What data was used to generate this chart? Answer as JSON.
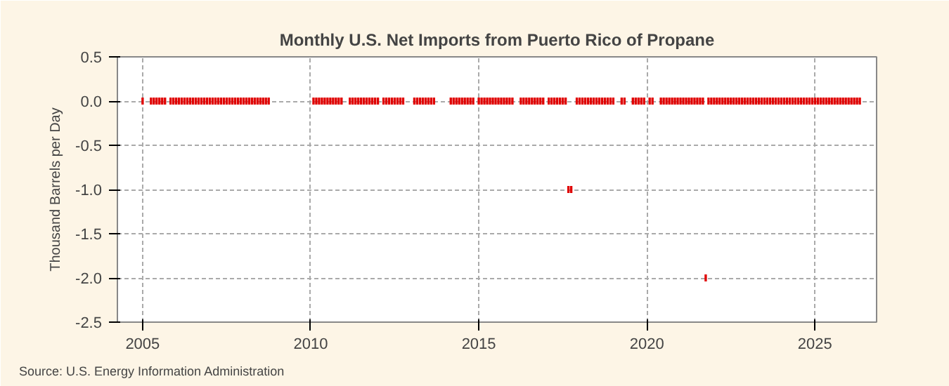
{
  "chart_data": {
    "type": "scatter",
    "title": "Monthly U.S. Net Imports from Puerto Rico of Propane",
    "ylabel": "Thousand Barrels per Day",
    "annotations": [
      "Source: U.S. Energy Information Administration"
    ],
    "xlim": [
      "2004-04",
      "2026-11"
    ],
    "xticks": [
      "2005",
      "2010",
      "2015",
      "2020",
      "2025"
    ],
    "ylim": [
      -2.5,
      0.5
    ],
    "yticks": [
      {
        "value": -2.5,
        "label": "-2.5"
      },
      {
        "value": -2.0,
        "label": "-2.0"
      },
      {
        "value": -1.5,
        "label": "-1.5"
      },
      {
        "value": -1.0,
        "label": "-1.0"
      },
      {
        "value": -0.5,
        "label": "-0.5"
      },
      {
        "value": 0.0,
        "label": "0.0"
      },
      {
        "value": 0.5,
        "label": "0.5"
      }
    ],
    "grid": true,
    "marker": "square",
    "series": [
      {
        "color": "#e00000",
        "x": [
          "2005-01",
          "2005-04",
          "2005-05",
          "2005-06",
          "2005-07",
          "2005-08",
          "2005-09",
          "2005-11",
          "2005-12",
          "2006-01",
          "2006-02",
          "2006-03",
          "2006-04",
          "2006-05",
          "2006-06",
          "2006-07",
          "2006-08",
          "2006-09",
          "2006-10",
          "2006-11",
          "2006-12",
          "2007-01",
          "2007-02",
          "2007-03",
          "2007-04",
          "2007-05",
          "2007-06",
          "2007-07",
          "2007-08",
          "2007-09",
          "2007-10",
          "2007-11",
          "2007-12",
          "2008-01",
          "2008-02",
          "2008-03",
          "2008-04",
          "2008-05",
          "2008-06",
          "2008-07",
          "2008-08",
          "2008-09",
          "2008-10",
          "2010-02",
          "2010-03",
          "2010-04",
          "2010-05",
          "2010-06",
          "2010-07",
          "2010-08",
          "2010-09",
          "2010-10",
          "2010-11",
          "2010-12",
          "2011-03",
          "2011-04",
          "2011-05",
          "2011-06",
          "2011-07",
          "2011-08",
          "2011-09",
          "2011-10",
          "2011-11",
          "2011-12",
          "2012-01",
          "2012-03",
          "2012-04",
          "2012-05",
          "2012-06",
          "2012-07",
          "2012-08",
          "2012-09",
          "2012-10",
          "2013-02",
          "2013-03",
          "2013-04",
          "2013-05",
          "2013-06",
          "2013-07",
          "2013-08",
          "2013-09",
          "2014-03",
          "2014-04",
          "2014-05",
          "2014-06",
          "2014-07",
          "2014-08",
          "2014-09",
          "2014-10",
          "2014-11",
          "2015-01",
          "2015-02",
          "2015-03",
          "2015-04",
          "2015-05",
          "2015-06",
          "2015-07",
          "2015-08",
          "2015-09",
          "2015-10",
          "2015-11",
          "2015-12",
          "2016-01",
          "2016-04",
          "2016-05",
          "2016-06",
          "2016-07",
          "2016-08",
          "2016-09",
          "2016-10",
          "2016-11",
          "2016-12",
          "2017-02",
          "2017-03",
          "2017-04",
          "2017-05",
          "2017-06",
          "2017-07",
          "2017-08",
          "2017-09",
          "2017-10",
          "2017-12",
          "2018-01",
          "2018-02",
          "2018-03",
          "2018-04",
          "2018-05",
          "2018-06",
          "2018-07",
          "2018-08",
          "2018-09",
          "2018-10",
          "2018-11",
          "2018-12",
          "2019-01",
          "2019-04",
          "2019-05",
          "2019-08",
          "2019-09",
          "2019-10",
          "2019-11",
          "2019-12",
          "2020-02",
          "2020-03",
          "2020-06",
          "2020-07",
          "2020-08",
          "2020-09",
          "2020-10",
          "2020-11",
          "2020-12",
          "2021-01",
          "2021-02",
          "2021-03",
          "2021-04",
          "2021-05",
          "2021-06",
          "2021-07",
          "2021-08",
          "2021-09",
          "2021-10",
          "2021-11",
          "2021-12",
          "2022-01",
          "2022-02",
          "2022-03",
          "2022-04",
          "2022-05",
          "2022-06",
          "2022-07",
          "2022-08",
          "2022-09",
          "2022-10",
          "2022-11",
          "2022-12",
          "2023-01",
          "2023-02",
          "2023-03",
          "2023-04",
          "2023-05",
          "2023-06",
          "2023-07",
          "2023-08",
          "2023-09",
          "2023-10",
          "2023-11",
          "2023-12",
          "2024-01",
          "2024-02",
          "2024-03",
          "2024-04",
          "2024-05",
          "2024-06",
          "2024-07",
          "2024-08",
          "2024-09",
          "2024-10",
          "2024-11",
          "2024-12",
          "2025-01",
          "2025-02",
          "2025-03",
          "2025-04",
          "2025-05",
          "2025-06",
          "2025-07",
          "2025-08",
          "2025-09",
          "2025-10",
          "2025-11",
          "2025-12",
          "2026-01",
          "2026-02",
          "2026-03",
          "2026-04",
          "2026-05"
        ],
        "values": [
          0,
          0,
          0,
          0,
          0,
          0,
          0,
          0,
          0,
          0,
          0,
          0,
          0,
          0,
          0,
          0,
          0,
          0,
          0,
          0,
          0,
          0,
          0,
          0,
          0,
          0,
          0,
          0,
          0,
          0,
          0,
          0,
          0,
          0,
          0,
          0,
          0,
          0,
          0,
          0,
          0,
          0,
          0,
          0,
          0,
          0,
          0,
          0,
          0,
          0,
          0,
          0,
          0,
          0,
          0,
          0,
          0,
          0,
          0,
          0,
          0,
          0,
          0,
          0,
          0,
          0,
          0,
          0,
          0,
          0,
          0,
          0,
          0,
          0,
          0,
          0,
          0,
          0,
          0,
          0,
          0,
          0,
          0,
          0,
          0,
          0,
          0,
          0,
          0,
          0,
          0,
          0,
          0,
          0,
          0,
          0,
          0,
          0,
          0,
          0,
          0,
          0,
          0,
          0,
          0,
          0,
          0,
          0,
          0,
          0,
          0,
          0,
          0,
          0,
          0,
          0,
          0,
          0,
          0,
          -1,
          -1,
          0,
          0,
          0,
          0,
          0,
          0,
          0,
          0,
          0,
          0,
          0,
          0,
          0,
          0,
          0,
          0,
          0,
          0,
          0,
          0,
          0,
          0,
          0,
          0,
          0,
          0,
          0,
          0,
          0,
          0,
          0,
          0,
          0,
          0,
          0,
          0,
          0,
          0,
          0,
          -2,
          0,
          0,
          0,
          0,
          0,
          0,
          0,
          0,
          0,
          0,
          0,
          0,
          0,
          0,
          0,
          0,
          0,
          0,
          0,
          0,
          0,
          0,
          0,
          0,
          0,
          0,
          0,
          0,
          0,
          0,
          0,
          0,
          0,
          0,
          0,
          0,
          0,
          0,
          0,
          0,
          0,
          0,
          0,
          0,
          0,
          0,
          0,
          0,
          0,
          0,
          0,
          0,
          0,
          0,
          0
        ]
      }
    ]
  }
}
